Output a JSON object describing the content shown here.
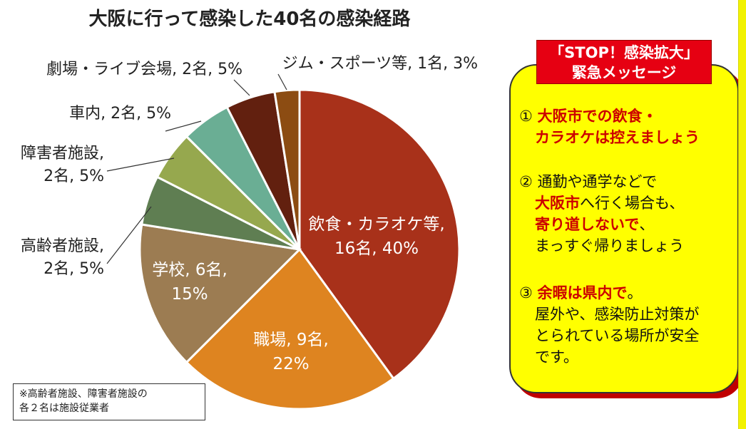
{
  "chart_data": {
    "type": "pie",
    "title": "大阪に行って感染した40名の感染経路",
    "total": 40,
    "slices": [
      {
        "name": "飲食・カラオケ等",
        "count": 16,
        "percent": 40,
        "color": "#a8311a",
        "label_lines": [
          "飲食・カラオケ等,",
          "16名, 40%"
        ],
        "label_position": "inside"
      },
      {
        "name": "職場",
        "count": 9,
        "percent": 22,
        "color": "#de8420",
        "label_lines": [
          "職場, 9名,",
          "22%"
        ],
        "label_position": "inside"
      },
      {
        "name": "学校",
        "count": 6,
        "percent": 15,
        "color": "#9c7c52",
        "label_lines": [
          "学校, 6名,",
          "15%"
        ],
        "label_position": "inside"
      },
      {
        "name": "高齢者施設",
        "count": 2,
        "percent": 5,
        "color": "#5f7e52",
        "label_lines": [
          "高齢者施設,",
          "2名, 5%"
        ],
        "label_position": "outside"
      },
      {
        "name": "障害者施設",
        "count": 2,
        "percent": 5,
        "color": "#96a84e",
        "label_lines": [
          "障害者施設,",
          "2名, 5%"
        ],
        "label_position": "outside"
      },
      {
        "name": "車内",
        "count": 2,
        "percent": 5,
        "color": "#6aae94",
        "label_lines": [
          "車内, 2名, 5%"
        ],
        "label_position": "outside"
      },
      {
        "name": "劇場・ライブ会場",
        "count": 2,
        "percent": 5,
        "color": "#62200f",
        "label_lines": [
          "劇場・ライブ会場, 2名, 5%"
        ],
        "label_position": "outside"
      },
      {
        "name": "ジム・スポーツ等",
        "count": 1,
        "percent": 3,
        "color": "#8c4c12",
        "label_lines": [
          "ジム・スポーツ等, 1名, 3%"
        ],
        "label_position": "outside"
      }
    ],
    "slice_border_color": "#ffffff",
    "legend": "none"
  },
  "footnote": {
    "lines": [
      "※高齢者施設、障害者施設の",
      "各２名は施設従業者"
    ]
  },
  "message": {
    "badge_lines": [
      "「STOP！感染拡大」",
      "緊急メッセージ"
    ],
    "items": [
      {
        "lines": [
          [
            {
              "text": "① "
            },
            {
              "text": "大阪市での飲食・",
              "red": true
            }
          ],
          [
            {
              "text": "カラオケは控えましょう",
              "red": true
            }
          ]
        ]
      },
      {
        "lines": [
          [
            {
              "text": "② 通勤や通学などで"
            }
          ],
          [
            {
              "text": "大阪市",
              "red": true
            },
            {
              "text": "へ行く場合も、"
            }
          ],
          [
            {
              "text": "寄り道しないで",
              "red": true
            },
            {
              "text": "、"
            }
          ],
          [
            {
              "text": "まっすぐ帰りましょう"
            }
          ]
        ]
      },
      {
        "lines": [
          [
            {
              "text": "③ "
            },
            {
              "text": "余暇は県内で",
              "red": true
            },
            {
              "text": "。"
            }
          ],
          [
            {
              "text": "屋外や、感染防止対策が"
            }
          ],
          [
            {
              "text": "とられている場所が安全"
            }
          ],
          [
            {
              "text": "です。"
            }
          ]
        ]
      }
    ],
    "colors": {
      "box": "#ffff00",
      "badge": "#e60012",
      "shadow": "#c00000",
      "emphasis": "#cc0000"
    }
  }
}
